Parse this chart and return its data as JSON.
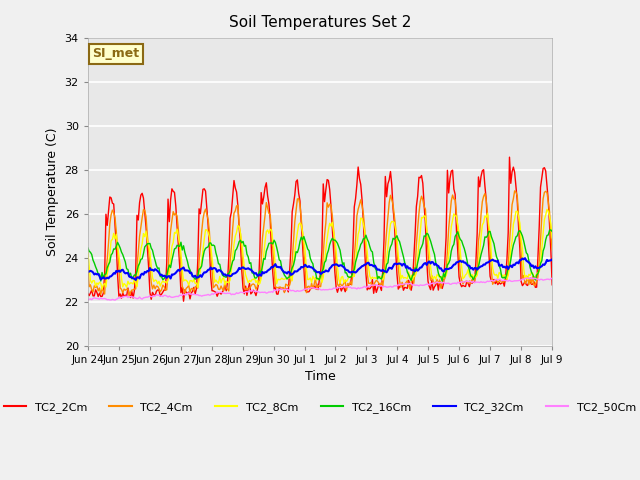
{
  "title": "Soil Temperatures Set 2",
  "xlabel": "Time",
  "ylabel": "Soil Temperature (C)",
  "ylim": [
    20,
    34
  ],
  "background_color": "#f0f0f0",
  "plot_bg_color": "#e8e8e8",
  "annotation_text": "SI_met",
  "annotation_bg": "#ffffcc",
  "annotation_border": "#8b6914",
  "series_colors": {
    "TC2_2Cm": "#ff0000",
    "TC2_4Cm": "#ff8c00",
    "TC2_8Cm": "#ffff00",
    "TC2_16Cm": "#00cc00",
    "TC2_32Cm": "#0000ff",
    "TC2_50Cm": "#ff80ff"
  },
  "tick_labels": [
    "Jun 24",
    "Jun 25",
    "Jun 26",
    "Jun 27",
    "Jun 28",
    "Jun 29",
    "Jun 30",
    "Jul 1",
    "Jul 2",
    "Jul 3",
    "Jul 4",
    "Jul 5",
    "Jul 6",
    "Jul 7",
    "Jul 8",
    "Jul 9"
  ],
  "num_days": 15,
  "start_day": 0,
  "yticks": [
    20,
    22,
    24,
    26,
    28,
    30,
    32,
    34
  ]
}
